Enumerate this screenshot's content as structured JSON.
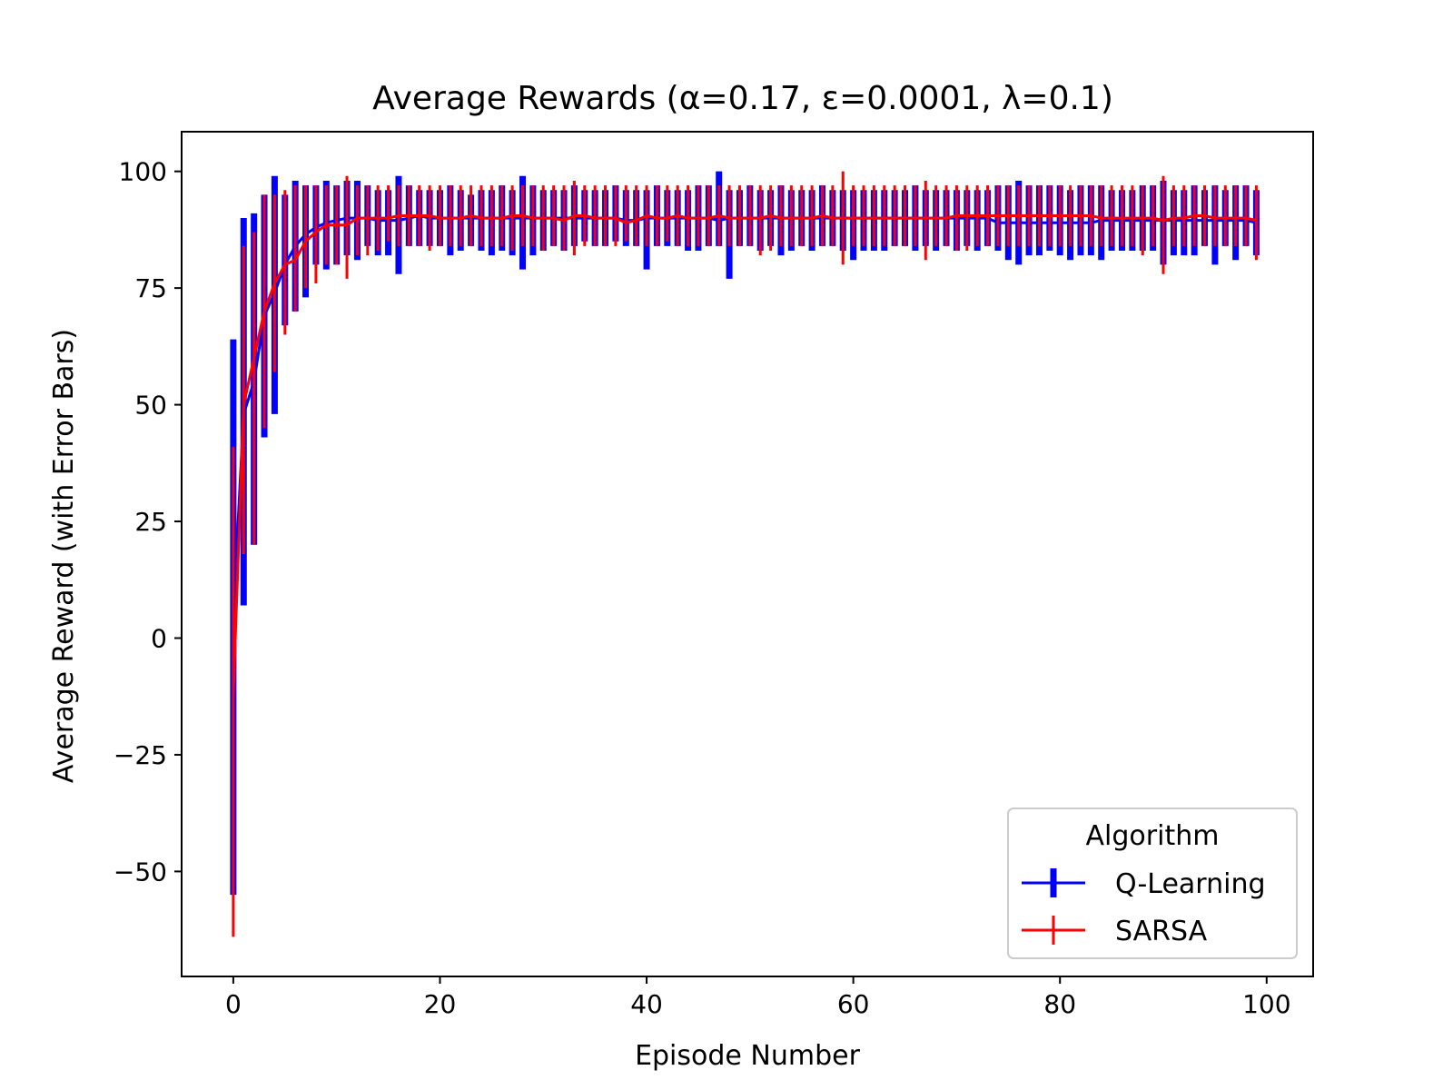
{
  "chart_data": {
    "type": "line",
    "title": "Average Rewards (α=0.17, ε=0.0001, λ=0.1)",
    "xlabel": "Episode Number",
    "ylabel": "Average Reward (with Error Bars)",
    "xlim": [
      -5,
      104.5
    ],
    "ylim": [
      -72.5,
      108.5
    ],
    "xticks": [
      0,
      20,
      40,
      60,
      80,
      100
    ],
    "yticks": [
      -50,
      -25,
      0,
      25,
      50,
      75,
      100
    ],
    "tick_labels_x": [
      "0",
      "20",
      "40",
      "60",
      "80",
      "100"
    ],
    "tick_labels_y": [
      "−50",
      "−25",
      "0",
      "25",
      "50",
      "75",
      "100"
    ],
    "grid": false,
    "legend": {
      "title": "Algorithm",
      "placement": "lower-right"
    },
    "series": [
      {
        "name": "Q-Learning",
        "color": "#0000ff",
        "x": [
          0,
          1,
          2,
          3,
          4,
          5,
          6,
          7,
          8,
          9,
          10,
          11,
          12,
          13,
          14,
          15,
          16,
          17,
          18,
          19,
          20,
          21,
          22,
          23,
          24,
          25,
          26,
          27,
          28,
          29,
          30,
          31,
          32,
          33,
          34,
          35,
          36,
          37,
          38,
          39,
          40,
          41,
          42,
          43,
          44,
          45,
          46,
          47,
          48,
          49,
          50,
          51,
          52,
          53,
          54,
          55,
          56,
          57,
          58,
          59,
          60,
          61,
          62,
          63,
          64,
          65,
          66,
          67,
          68,
          69,
          70,
          71,
          72,
          73,
          74,
          75,
          76,
          77,
          78,
          79,
          80,
          81,
          82,
          83,
          84,
          85,
          86,
          87,
          88,
          89,
          90,
          91,
          92,
          93,
          94,
          95,
          96,
          97,
          98,
          99
        ],
        "y": [
          5,
          48,
          55,
          69,
          74,
          80,
          84,
          86.5,
          88,
          89,
          89.5,
          90,
          90,
          90,
          89.5,
          89.5,
          89.5,
          90,
          90.5,
          90,
          90,
          90,
          90,
          90,
          90,
          90,
          90,
          90,
          90,
          90,
          90,
          90,
          90,
          90,
          90,
          90,
          90,
          90,
          89.5,
          89.5,
          90,
          90,
          90,
          90,
          90,
          90,
          90,
          89.5,
          90,
          90,
          90,
          90,
          90,
          90,
          90,
          90,
          90,
          90,
          90,
          90,
          90,
          90,
          90,
          90,
          90,
          90,
          90,
          90,
          90,
          90,
          90,
          90,
          90,
          90,
          89,
          89,
          89,
          89,
          89,
          89,
          89,
          89,
          89,
          89,
          89.5,
          89.5,
          89.5,
          89.5,
          89.5,
          89.5,
          89.5,
          89.5,
          89.5,
          89.5,
          89.5,
          89.5,
          89.5,
          89.5,
          89.5,
          89
        ],
        "err_low": [
          -55,
          7,
          20,
          43,
          48,
          67,
          70,
          73,
          80,
          79,
          80,
          82,
          81,
          84,
          82,
          82,
          78,
          84,
          84,
          84,
          84,
          82,
          83,
          84,
          83,
          82,
          83,
          82,
          79,
          82,
          83,
          84,
          83,
          84,
          85,
          84,
          84,
          85,
          84,
          84,
          79,
          84,
          84,
          84,
          83,
          83,
          84,
          84,
          77,
          84,
          84,
          83,
          84,
          82,
          83,
          84,
          83,
          84,
          84,
          83,
          81,
          83,
          83,
          83,
          84,
          84,
          83,
          84,
          83,
          84,
          83,
          84,
          83,
          84,
          83,
          81,
          80,
          82,
          82,
          83,
          82,
          81,
          82,
          82,
          81,
          83,
          83,
          83,
          83,
          83,
          80,
          82,
          82,
          82,
          84,
          80,
          84,
          81,
          84,
          82
        ],
        "err_high": [
          64,
          90,
          91,
          95,
          99,
          95,
          98,
          97,
          97,
          98,
          97,
          98,
          98,
          97,
          96,
          96,
          99,
          97,
          96,
          96,
          96,
          97,
          96,
          95,
          96,
          96,
          97,
          96,
          99,
          97,
          96,
          96,
          96,
          97,
          96,
          96,
          96,
          97,
          96,
          96,
          96,
          97,
          96,
          96,
          96,
          97,
          97,
          100,
          96,
          96,
          97,
          96,
          96,
          97,
          96,
          96,
          96,
          97,
          96,
          96,
          96,
          96,
          96,
          96,
          96,
          96,
          97,
          96,
          96,
          96,
          96,
          96,
          96,
          96,
          97,
          97,
          98,
          97,
          97,
          97,
          97,
          96,
          97,
          97,
          97,
          96,
          96,
          96,
          97,
          97,
          98,
          96,
          96,
          97,
          96,
          97,
          96,
          97,
          97,
          96
        ]
      },
      {
        "name": "SARSA",
        "color": "#ff0000",
        "x": [
          0,
          1,
          2,
          3,
          4,
          5,
          6,
          7,
          8,
          9,
          10,
          11,
          12,
          13,
          14,
          15,
          16,
          17,
          18,
          19,
          20,
          21,
          22,
          23,
          24,
          25,
          26,
          27,
          28,
          29,
          30,
          31,
          32,
          33,
          34,
          35,
          36,
          37,
          38,
          39,
          40,
          41,
          42,
          43,
          44,
          45,
          46,
          47,
          48,
          49,
          50,
          51,
          52,
          53,
          54,
          55,
          56,
          57,
          58,
          59,
          60,
          61,
          62,
          63,
          64,
          65,
          66,
          67,
          68,
          69,
          70,
          71,
          72,
          73,
          74,
          75,
          76,
          77,
          78,
          79,
          80,
          81,
          82,
          83,
          84,
          85,
          86,
          87,
          88,
          89,
          90,
          91,
          92,
          93,
          94,
          95,
          96,
          97,
          98,
          99
        ],
        "y": [
          -12,
          50,
          60,
          70,
          76,
          80,
          81,
          85,
          87,
          88.5,
          88.5,
          88.5,
          90,
          90,
          90,
          90,
          90.5,
          90.5,
          90.5,
          90.5,
          90,
          90,
          90,
          90.5,
          90,
          90,
          90,
          90.5,
          90.5,
          90,
          90,
          90,
          89.5,
          90.5,
          90.5,
          90,
          90,
          90,
          89,
          89.5,
          90.5,
          90,
          90,
          90.5,
          90,
          90,
          90,
          90.5,
          90,
          90,
          90,
          90,
          90.5,
          90,
          90,
          90,
          90,
          90.5,
          90,
          90,
          90,
          90,
          90,
          90,
          90,
          90,
          90,
          90,
          90,
          90,
          90.5,
          90.5,
          90.5,
          90.5,
          90.5,
          90.5,
          90.5,
          90.5,
          90.5,
          90.5,
          90.5,
          90.5,
          90.5,
          90.5,
          90,
          90,
          90,
          90,
          90,
          90,
          89.5,
          90,
          90,
          90.5,
          90.5,
          90,
          90,
          90,
          90,
          89.5
        ],
        "err_low": [
          -64,
          18,
          20,
          45,
          57,
          65,
          70,
          75,
          76,
          80,
          80,
          77,
          82,
          82,
          83,
          85,
          84,
          84,
          84,
          83,
          84,
          84,
          84,
          84,
          84,
          84,
          84,
          83,
          84,
          84,
          83,
          84,
          83,
          82,
          84,
          84,
          84,
          84,
          85,
          84,
          84,
          84,
          85,
          84,
          84,
          84,
          84,
          84,
          84,
          84,
          84,
          82,
          83,
          84,
          84,
          84,
          84,
          84,
          84,
          80,
          84,
          84,
          84,
          84,
          84,
          84,
          84,
          81,
          84,
          84,
          83,
          83,
          84,
          84,
          84,
          84,
          84,
          84,
          84,
          84,
          84,
          84,
          84,
          84,
          84,
          84,
          84,
          84,
          82,
          84,
          78,
          84,
          84,
          84,
          84,
          84,
          84,
          84,
          84,
          81
        ],
        "err_high": [
          41,
          84,
          87,
          95,
          95,
          96,
          97,
          97,
          97,
          97,
          97,
          99,
          97,
          97,
          97,
          97,
          97,
          97,
          97,
          97,
          97,
          97,
          97,
          97,
          97,
          97,
          97,
          97,
          97,
          97,
          97,
          97,
          97,
          98,
          97,
          97,
          97,
          97,
          97,
          97,
          97,
          97,
          97,
          97,
          97,
          97,
          97,
          97,
          97,
          97,
          97,
          97,
          97,
          97,
          97,
          97,
          97,
          97,
          97,
          100,
          97,
          97,
          97,
          97,
          97,
          97,
          97,
          98,
          97,
          97,
          97,
          97,
          97,
          97,
          97,
          97,
          97,
          97,
          97,
          97,
          97,
          97,
          97,
          97,
          97,
          97,
          97,
          97,
          97,
          97,
          99,
          97,
          97,
          97,
          97,
          97,
          97,
          97,
          97,
          97
        ]
      }
    ]
  }
}
